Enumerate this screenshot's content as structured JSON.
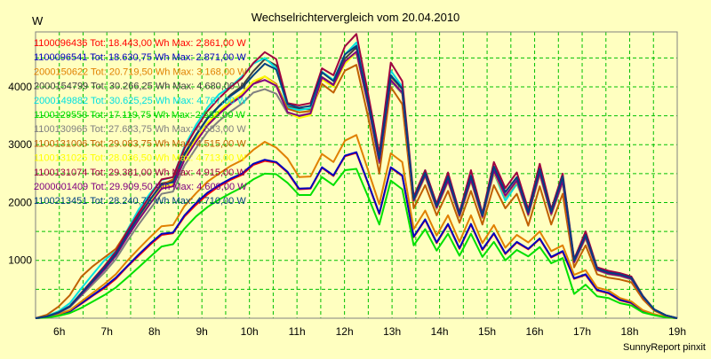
{
  "chart_data": {
    "type": "line",
    "title": "Wechselrichtervergleich vom 20.04.2010",
    "ylabel": "W",
    "footer": "SunnyReport pinxit",
    "ylim": [
      0,
      4950
    ],
    "xlim": [
      5.5,
      19.0
    ],
    "yticks": [
      1000,
      2000,
      3000,
      4000
    ],
    "xticks": [
      6,
      7,
      8,
      9,
      10,
      11,
      12,
      13,
      14,
      15,
      16,
      17,
      18,
      19
    ],
    "xtick_labels": [
      "6h",
      "7h",
      "8h",
      "9h",
      "10h",
      "11h",
      "12h",
      "13h",
      "14h",
      "15h",
      "16h",
      "17h",
      "18h",
      "19h"
    ],
    "grid": true,
    "legend_position": "top-left",
    "background_color": "#ffffc0",
    "grid_color": "#00c000",
    "series": [
      {
        "name": "1100096436 Tot: 18.443,00 Wh Max: 2.861,00 W",
        "color": "#ff0000",
        "values": [
          0,
          20,
          60,
          120,
          250,
          390,
          520,
          680,
          890,
          1080,
          1270,
          1440,
          1470,
          1760,
          1960,
          2140,
          2280,
          2390,
          2480,
          2650,
          2720,
          2690,
          2520,
          2230,
          2240,
          2600,
          2460,
          2800,
          2860,
          2340,
          1800,
          2600,
          2460,
          1400,
          1700,
          1300,
          1620,
          1200,
          1620,
          1180,
          1460,
          1110,
          1310,
          1190,
          1370,
          1050,
          1150,
          680,
          750,
          480,
          430,
          310,
          260,
          120,
          60,
          20,
          0
        ]
      },
      {
        "name": "1100096541 Tot: 18.630,75 Wh Max: 2.871,00 W",
        "color": "#0000c0",
        "values": [
          0,
          20,
          60,
          120,
          260,
          400,
          540,
          700,
          900,
          1100,
          1290,
          1460,
          1480,
          1780,
          1990,
          2170,
          2300,
          2410,
          2500,
          2670,
          2740,
          2700,
          2530,
          2240,
          2250,
          2610,
          2470,
          2810,
          2870,
          2350,
          1810,
          2610,
          2470,
          1410,
          1710,
          1310,
          1630,
          1210,
          1630,
          1190,
          1470,
          1120,
          1320,
          1200,
          1380,
          1060,
          1160,
          690,
          760,
          490,
          440,
          320,
          270,
          130,
          60,
          20,
          0
        ]
      },
      {
        "name": "2000150622 Tot: 20.719,50 Wh Max: 3.168,00 W",
        "color": "#e08000",
        "values": [
          0,
          20,
          70,
          140,
          290,
          440,
          590,
          760,
          990,
          1200,
          1400,
          1590,
          1610,
          1940,
          2160,
          2360,
          2500,
          2630,
          2730,
          2910,
          3050,
          2950,
          2760,
          2440,
          2450,
          2840,
          2700,
          3070,
          3168,
          2570,
          1970,
          2850,
          2700,
          1540,
          1860,
          1430,
          1780,
          1320,
          1780,
          1300,
          1610,
          1220,
          1440,
          1310,
          1500,
          1160,
          1260,
          750,
          830,
          530,
          480,
          350,
          290,
          140,
          70,
          20,
          0
        ]
      },
      {
        "name": "2000154799 Tot: 30.266,25 Wh Max: 4.680,00 W",
        "color": "#404040",
        "values": [
          0,
          30,
          100,
          210,
          430,
          650,
          870,
          1120,
          1450,
          1760,
          2050,
          2330,
          2370,
          2850,
          3170,
          3460,
          3670,
          3860,
          4010,
          4270,
          4480,
          4370,
          3660,
          3620,
          3610,
          4170,
          4040,
          4490,
          4680,
          3770,
          2760,
          4180,
          3960,
          2070,
          2520,
          1950,
          2430,
          1800,
          2440,
          1780,
          2620,
          2180,
          2430,
          1820,
          2570,
          1830,
          2440,
          1000,
          1450,
          860,
          790,
          760,
          700,
          380,
          150,
          50,
          0
        ]
      },
      {
        "name": "2000149882 Tot: 30.625,25 Wh Max: 4.767,00 W",
        "color": "#00e0e0",
        "values": [
          0,
          40,
          120,
          260,
          520,
          760,
          1000,
          1160,
          1520,
          1880,
          2160,
          2390,
          2440,
          2970,
          3340,
          3640,
          3870,
          4000,
          4180,
          4400,
          4500,
          4320,
          3640,
          3600,
          3630,
          4260,
          4120,
          4560,
          4767,
          3830,
          2780,
          4280,
          4000,
          2080,
          2560,
          1960,
          2480,
          1810,
          2490,
          1800,
          2520,
          2030,
          2320,
          1870,
          2500,
          1900,
          2360,
          1020,
          1380,
          880,
          800,
          760,
          700,
          380,
          150,
          50,
          0
        ]
      },
      {
        "name": "1100129553 Tot: 17.119,75 Wh Max: 2.582,00 W",
        "color": "#00e000",
        "values": [
          0,
          10,
          40,
          90,
          180,
          290,
          400,
          530,
          700,
          880,
          1060,
          1240,
          1280,
          1550,
          1760,
          1920,
          2050,
          2160,
          2260,
          2400,
          2500,
          2490,
          2340,
          2130,
          2130,
          2440,
          2300,
          2560,
          2582,
          2110,
          1620,
          2380,
          2230,
          1260,
          1540,
          1170,
          1460,
          1080,
          1460,
          1060,
          1320,
          1000,
          1180,
          1070,
          1230,
          950,
          1040,
          420,
          580,
          380,
          350,
          260,
          220,
          100,
          50,
          15,
          0
        ]
      },
      {
        "name": "1100130966 Tot: 27.683,75 Wh Max: 4.583,00 W",
        "color": "#808080",
        "values": [
          0,
          30,
          90,
          190,
          390,
          590,
          790,
          1020,
          1330,
          1620,
          1890,
          2150,
          2190,
          2640,
          2940,
          3220,
          3410,
          3570,
          3710,
          3900,
          3960,
          3880,
          3540,
          3480,
          3520,
          4140,
          4010,
          4420,
          4583,
          3690,
          2680,
          4100,
          3880,
          2010,
          2450,
          1890,
          2360,
          1750,
          2370,
          1730,
          2510,
          2090,
          2350,
          1770,
          2480,
          1780,
          2340,
          960,
          1380,
          830,
          760,
          730,
          670,
          360,
          140,
          50,
          0
        ]
      },
      {
        "name": "1100131006 Tot: 29.083,75 Wh Max: 4.515,00 W",
        "color": "#c06000",
        "values": [
          0,
          60,
          200,
          400,
          720,
          900,
          1050,
          1200,
          1500,
          1780,
          2050,
          2300,
          2400,
          2800,
          3100,
          3350,
          3560,
          3720,
          3850,
          4050,
          4180,
          4050,
          3620,
          3560,
          3580,
          4050,
          3900,
          4280,
          4380,
          3500,
          2500,
          4000,
          3700,
          1900,
          2300,
          1780,
          2200,
          1650,
          2200,
          1620,
          2300,
          1900,
          2150,
          1600,
          2280,
          1620,
          2150,
          880,
          1260,
          760,
          700,
          670,
          620,
          330,
          130,
          40,
          0
        ]
      },
      {
        "name": "1100131025 Tot: 28.036,50 Wh Max: 4.713,00 W",
        "color": "#ffff00",
        "values": [
          0,
          30,
          100,
          200,
          420,
          630,
          850,
          1090,
          1420,
          1720,
          2010,
          2270,
          2310,
          2770,
          3090,
          3380,
          3580,
          3750,
          3890,
          4100,
          4180,
          4030,
          3560,
          3460,
          3510,
          4130,
          4000,
          4400,
          4600,
          3720,
          2700,
          4130,
          3900,
          2020,
          2460,
          1900,
          2370,
          1760,
          2380,
          1740,
          2530,
          2110,
          2370,
          1780,
          2500,
          1790,
          2360,
          970,
          1390,
          840,
          770,
          740,
          680,
          370,
          150,
          50,
          0
        ]
      },
      {
        "name": "1100131074 Tot: 29.381,00 Wh Max: 4.915,00 W",
        "color": "#a00040",
        "values": [
          0,
          30,
          100,
          210,
          440,
          670,
          900,
          1150,
          1500,
          1820,
          2120,
          2400,
          2440,
          2940,
          3280,
          3580,
          3800,
          3990,
          4150,
          4410,
          4600,
          4480,
          3720,
          3680,
          3720,
          4320,
          4200,
          4700,
          4915,
          3900,
          2850,
          4420,
          4100,
          2100,
          2560,
          1980,
          2520,
          1830,
          2560,
          1810,
          2700,
          2250,
          2520,
          1880,
          2670,
          1880,
          2500,
          1020,
          1500,
          880,
          820,
          780,
          720,
          390,
          150,
          50,
          0
        ]
      },
      {
        "name": "2000001409 Tot: 29.909,50 Wh Max: 4.609,00 W",
        "color": "#800080",
        "values": [
          0,
          30,
          95,
          200,
          410,
          630,
          840,
          1080,
          1400,
          1700,
          1980,
          2240,
          2280,
          2740,
          3050,
          3330,
          3530,
          3700,
          3840,
          4050,
          4120,
          4020,
          3560,
          3500,
          3540,
          4160,
          4030,
          4440,
          4609,
          3720,
          2700,
          4120,
          3900,
          2030,
          2470,
          1910,
          2380,
          1770,
          2390,
          1750,
          2550,
          2120,
          2380,
          1790,
          2510,
          1800,
          2370,
          970,
          1400,
          840,
          770,
          740,
          680,
          370,
          150,
          50,
          0
        ]
      },
      {
        "name": "1100213451 Tot: 28.240,75 Wh Max: 4.710,00 W",
        "color": "#004080",
        "values": [
          0,
          30,
          100,
          205,
          430,
          650,
          870,
          1110,
          1450,
          1760,
          2050,
          2310,
          2350,
          2830,
          3160,
          3450,
          3660,
          3840,
          3980,
          4200,
          4400,
          4300,
          3700,
          3640,
          3670,
          4250,
          4100,
          4560,
          4710,
          3780,
          2760,
          4200,
          3970,
          2060,
          2510,
          1940,
          2450,
          1800,
          2460,
          1780,
          2620,
          2180,
          2440,
          1830,
          2580,
          1840,
          2450,
          1000,
          1440,
          860,
          790,
          760,
          700,
          380,
          150,
          50,
          0
        ]
      }
    ]
  }
}
